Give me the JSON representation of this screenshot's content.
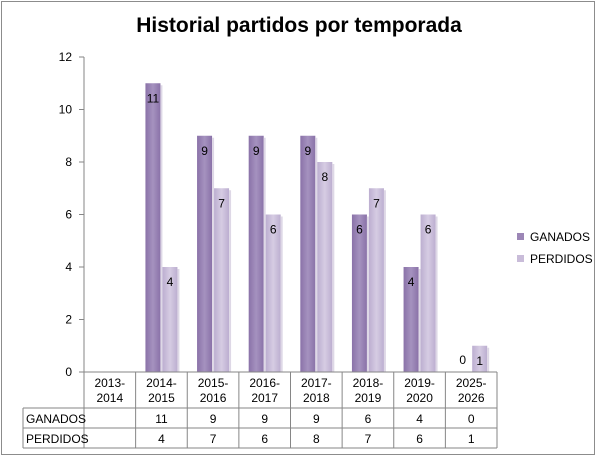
{
  "chart_data": {
    "type": "bar",
    "title": "Historial partidos por temporada",
    "categories": [
      [
        "2013-",
        "2014"
      ],
      [
        "2014-",
        "2015"
      ],
      [
        "2015-",
        "2016"
      ],
      [
        "2016-",
        "2017"
      ],
      [
        "2017-",
        "2018"
      ],
      [
        "2018-",
        "2019"
      ],
      [
        "2019-",
        "2020"
      ],
      [
        "2025-",
        "2026"
      ]
    ],
    "series": [
      {
        "name": "GANADOS",
        "values": [
          null,
          11,
          9,
          9,
          9,
          6,
          4,
          0
        ],
        "color": "#9c86b6"
      },
      {
        "name": "PERDIDOS",
        "values": [
          null,
          4,
          7,
          6,
          8,
          7,
          6,
          1
        ],
        "color": "#c9bcd9"
      }
    ],
    "ylim": [
      0,
      12
    ],
    "yticks": [
      0,
      2,
      4,
      6,
      8,
      10,
      12
    ],
    "xlabel": "",
    "ylabel": "",
    "legend": "right",
    "grid": false,
    "data_table": true
  }
}
